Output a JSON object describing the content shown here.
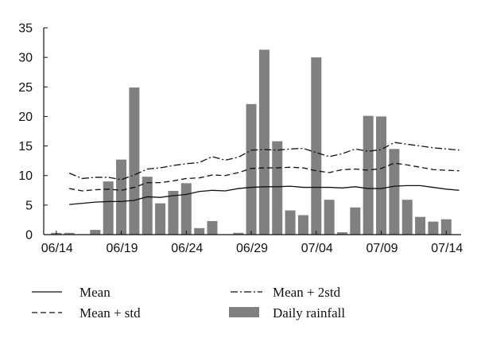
{
  "chart_data": {
    "type": "bar",
    "title": "",
    "xlabel": "",
    "ylabel": "",
    "ylim": [
      0,
      35
    ],
    "yticks": [
      0,
      5,
      10,
      15,
      20,
      25,
      30,
      35
    ],
    "xtick_labels": [
      "06/14",
      "06/19",
      "06/24",
      "06/29",
      "07/04",
      "07/09",
      "07/14"
    ],
    "xtick_index": [
      0,
      5,
      10,
      15,
      20,
      25,
      30
    ],
    "x": [
      "06/14",
      "06/15",
      "06/16",
      "06/17",
      "06/18",
      "06/19",
      "06/20",
      "06/21",
      "06/22",
      "06/23",
      "06/24",
      "06/25",
      "06/26",
      "06/27",
      "06/28",
      "06/29",
      "06/30",
      "07/01",
      "07/02",
      "07/03",
      "07/04",
      "07/05",
      "07/06",
      "07/07",
      "07/08",
      "07/09",
      "07/10",
      "07/11",
      "07/12",
      "07/13",
      "07/14",
      "07/15"
    ],
    "grid": false,
    "legend_position": "bottom",
    "series": [
      {
        "name": "Daily rainfall",
        "kind": "bar",
        "color": "#808080",
        "values": [
          0.3,
          0.3,
          0.0,
          0.8,
          9.0,
          12.7,
          24.9,
          9.8,
          5.3,
          7.4,
          8.7,
          1.1,
          2.3,
          0.0,
          0.3,
          22.1,
          31.3,
          15.8,
          4.1,
          3.3,
          30.0,
          5.9,
          0.4,
          4.6,
          20.1,
          20.0,
          14.5,
          5.9,
          3.0,
          2.2,
          2.6,
          null
        ]
      },
      {
        "name": "Mean",
        "kind": "line",
        "dash": "solid",
        "values": [
          null,
          5.1,
          5.3,
          5.5,
          5.6,
          5.6,
          5.8,
          6.4,
          6.3,
          6.6,
          6.8,
          7.3,
          7.5,
          7.4,
          7.8,
          8.0,
          8.1,
          8.1,
          8.2,
          8.0,
          8.0,
          8.0,
          7.9,
          8.1,
          7.8,
          7.8,
          8.2,
          8.3,
          8.3,
          8.0,
          7.7,
          7.5
        ]
      },
      {
        "name": "Mean + std",
        "kind": "line",
        "dash": "dashed",
        "values": [
          null,
          7.8,
          7.4,
          7.6,
          7.7,
          7.5,
          8.0,
          8.8,
          8.8,
          9.1,
          9.5,
          9.6,
          10.1,
          10.0,
          10.5,
          11.2,
          11.3,
          11.3,
          11.4,
          11.3,
          10.8,
          10.5,
          11.0,
          11.1,
          10.9,
          11.2,
          12.1,
          11.8,
          11.4,
          11.0,
          10.9,
          10.8
        ]
      },
      {
        "name": "Mean + 2std",
        "kind": "line",
        "dash": "dashdot",
        "values": [
          null,
          10.4,
          9.5,
          9.7,
          9.7,
          9.3,
          10.1,
          11.1,
          11.3,
          11.7,
          12.0,
          12.2,
          13.2,
          12.6,
          13.1,
          14.3,
          14.4,
          14.3,
          14.5,
          14.6,
          13.9,
          13.2,
          13.7,
          14.5,
          14.1,
          14.4,
          15.6,
          15.3,
          15.0,
          14.7,
          14.5,
          14.3
        ]
      }
    ]
  },
  "legend": [
    {
      "label": "Mean",
      "dash": "solid"
    },
    {
      "label": "Mean + 2std",
      "dash": "dashdot"
    },
    {
      "label": "Mean + std",
      "dash": "dashed"
    },
    {
      "label": "Daily rainfall",
      "dash": "bar"
    }
  ]
}
